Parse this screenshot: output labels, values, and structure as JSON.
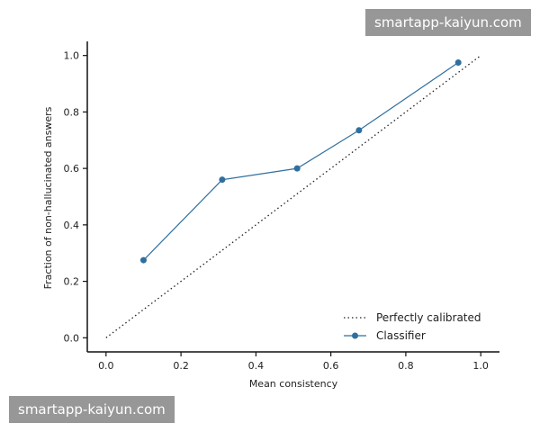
{
  "watermarks": {
    "top": "smartapp-kaiyun.com",
    "bottom": "smartapp-kaiyun.com"
  },
  "chart_data": {
    "type": "line",
    "title": "",
    "xlabel": "Mean consistency",
    "ylabel": "Fraction of non-hallucinated answers",
    "xlim": [
      -0.05,
      1.05
    ],
    "ylim": [
      -0.05,
      1.05
    ],
    "xticks": [
      0.0,
      0.2,
      0.4,
      0.6,
      0.8,
      1.0
    ],
    "xtick_labels": [
      "0.0",
      "0.2",
      "0.4",
      "0.6",
      "0.8",
      "1.0"
    ],
    "yticks": [
      0.0,
      0.2,
      0.4,
      0.6,
      0.8,
      1.0
    ],
    "ytick_labels": [
      "0.0",
      "0.2",
      "0.4",
      "0.6",
      "0.8",
      "1.0"
    ],
    "grid": false,
    "legend_position": "bottom-right",
    "series": [
      {
        "name": "Perfectly calibrated",
        "style": "dotted",
        "color": "#222222",
        "x": [
          0.0,
          1.0
        ],
        "y": [
          0.0,
          1.0
        ]
      },
      {
        "name": "Classifier",
        "style": "line-marker",
        "color": "#2f6f9f",
        "x": [
          0.1,
          0.31,
          0.51,
          0.675,
          0.94
        ],
        "y": [
          0.275,
          0.56,
          0.6,
          0.735,
          0.975
        ]
      }
    ]
  }
}
